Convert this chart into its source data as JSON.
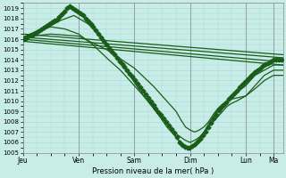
{
  "xlabel": "Pression niveau de la mer( hPa )",
  "ylim": [
    1005,
    1019.5
  ],
  "yticks": [
    1005,
    1006,
    1007,
    1008,
    1009,
    1010,
    1011,
    1012,
    1013,
    1014,
    1015,
    1016,
    1017,
    1018,
    1019
  ],
  "xtick_labels": [
    "Jeu",
    "Ven",
    "Sam",
    "Dim",
    "Lun",
    "Ma"
  ],
  "xtick_positions": [
    0,
    24,
    48,
    72,
    96,
    108
  ],
  "xlim": [
    0,
    112
  ],
  "bg_color": "#c8ede8",
  "grid_color": "#a8d8d0",
  "line_color": "#1a5c1a",
  "line_width": 0.9,
  "marker": "D",
  "marker_size": 2.5
}
